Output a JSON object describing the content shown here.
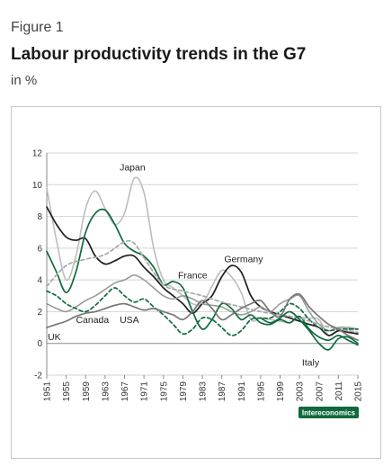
{
  "figure_label": "Figure 1",
  "title": "Labour productivity trends in the G7",
  "subtitle": "in %",
  "badge": "Intereconomics",
  "colors": {
    "Japan": "#bdbdbd",
    "Germany": "#1e1e1e",
    "France": "#9a9a9a",
    "Canada": "#0f6b3c",
    "USA": "#0f6b3c",
    "UK": "#777777",
    "Italy": "#0f6b3c",
    "badge": "#0f6b3c"
  },
  "chart_data": {
    "type": "line",
    "ylim": [
      -2,
      12
    ],
    "yticks": [
      -2,
      0,
      2,
      4,
      6,
      8,
      10,
      12
    ],
    "xlim": [
      1951,
      2015
    ],
    "xticks": [
      1951,
      1955,
      1959,
      1963,
      1967,
      1971,
      1975,
      1979,
      1983,
      1987,
      1991,
      1995,
      1999,
      2003,
      2007,
      2011,
      2015
    ],
    "grid": "horizontal",
    "series": [
      {
        "name": "Japan",
        "style": "solid",
        "x": [
          1951,
          1953,
          1955,
          1957,
          1959,
          1961,
          1963,
          1965,
          1967,
          1969,
          1971,
          1973,
          1975,
          1977,
          1979,
          1981,
          1983,
          1985,
          1987,
          1989,
          1991,
          1993,
          1995,
          1997,
          1999,
          2001,
          2003,
          2005,
          2007,
          2009,
          2011,
          2013,
          2015
        ],
        "y": [
          9.8,
          6.5,
          4.0,
          5.5,
          8.5,
          9.6,
          8.5,
          7.5,
          8.2,
          10.4,
          9.5,
          6.0,
          4.0,
          3.5,
          3.0,
          2.5,
          2.5,
          3.6,
          4.6,
          4.2,
          3.2,
          1.5,
          1.6,
          1.5,
          1.4,
          1.3,
          1.6,
          1.6,
          1.5,
          0.5,
          0.8,
          0.9,
          0.9
        ]
      },
      {
        "name": "Germany",
        "style": "solid",
        "x": [
          1951,
          1953,
          1955,
          1957,
          1959,
          1961,
          1963,
          1965,
          1967,
          1969,
          1971,
          1973,
          1975,
          1977,
          1979,
          1981,
          1983,
          1985,
          1987,
          1989,
          1991,
          1993,
          1995,
          1997,
          1999,
          2001,
          2003,
          2005,
          2007,
          2009,
          2011,
          2013,
          2015
        ],
        "y": [
          8.6,
          7.5,
          6.7,
          6.5,
          6.6,
          5.5,
          5.0,
          5.2,
          5.5,
          5.5,
          4.8,
          4.2,
          3.5,
          3.0,
          2.5,
          1.9,
          2.5,
          3.0,
          4.2,
          4.9,
          4.5,
          3.0,
          2.3,
          2.0,
          1.8,
          1.6,
          1.4,
          1.2,
          1.0,
          0.5,
          0.8,
          0.7,
          0.6
        ]
      },
      {
        "name": "France",
        "style": "solid",
        "x": [
          1951,
          1953,
          1955,
          1957,
          1959,
          1961,
          1963,
          1965,
          1967,
          1969,
          1971,
          1973,
          1975,
          1977,
          1979,
          1981,
          1983,
          1985,
          1987,
          1989,
          1991,
          1993,
          1995,
          1997,
          1999,
          2001,
          2003,
          2005,
          2007,
          2009,
          2011,
          2013,
          2015
        ],
        "y": [
          2.5,
          2.2,
          2.0,
          2.3,
          2.7,
          3.0,
          3.4,
          3.8,
          4.0,
          4.3,
          4.0,
          3.5,
          3.0,
          2.8,
          3.0,
          2.8,
          2.5,
          2.4,
          2.3,
          2.0,
          1.8,
          2.0,
          2.3,
          2.0,
          2.5,
          2.8,
          3.0,
          2.0,
          1.2,
          0.8,
          1.0,
          1.0,
          0.9
        ]
      },
      {
        "name": "Canada",
        "style": "solid",
        "x": [
          1951,
          1953,
          1955,
          1957,
          1959,
          1961,
          1963,
          1965,
          1967,
          1969,
          1971,
          1973,
          1975,
          1977,
          1979,
          1981,
          1983,
          1985,
          1987,
          1989,
          1991,
          1993,
          1995,
          1997,
          1999,
          2001,
          2003,
          2005,
          2007,
          2009,
          2011,
          2013,
          2015
        ],
        "y": [
          5.8,
          4.5,
          3.2,
          4.5,
          7.0,
          8.2,
          8.4,
          7.5,
          6.3,
          5.8,
          5.5,
          4.8,
          3.7,
          3.9,
          3.5,
          2.0,
          0.9,
          1.5,
          2.5,
          2.2,
          1.5,
          1.8,
          1.3,
          1.2,
          1.5,
          1.3,
          1.7,
          0.9,
          0.4,
          0.2,
          0.5,
          0.2,
          -0.1
        ]
      },
      {
        "name": "USA",
        "style": "dashed",
        "x": [
          1951,
          1953,
          1955,
          1957,
          1959,
          1961,
          1963,
          1965,
          1967,
          1969,
          1971,
          1973,
          1975,
          1977,
          1979,
          1981,
          1983,
          1985,
          1987,
          1989,
          1991,
          1993,
          1995,
          1997,
          1999,
          2001,
          2003,
          2005,
          2007,
          2009,
          2011,
          2013,
          2015
        ],
        "y": [
          3.3,
          3.0,
          2.5,
          2.2,
          2.0,
          2.4,
          3.0,
          3.5,
          3.0,
          2.6,
          2.8,
          2.3,
          1.8,
          1.2,
          0.6,
          0.9,
          1.6,
          1.5,
          1.0,
          0.5,
          0.8,
          1.5,
          1.6,
          1.6,
          2.0,
          2.5,
          2.2,
          1.5,
          1.0,
          0.8,
          0.9,
          0.9,
          0.9
        ]
      },
      {
        "name": "",
        "style": "dashed",
        "x": [
          1951,
          1955,
          1959,
          1963,
          1967,
          1969,
          1971,
          1975,
          1979,
          1983,
          1987,
          1991,
          1995,
          1999,
          2003,
          2007,
          2011,
          2015
        ],
        "y": [
          3.6,
          4.9,
          5.3,
          5.6,
          6.4,
          6.3,
          5.4,
          3.7,
          3.3,
          3.0,
          2.6,
          2.3,
          2.0,
          1.8,
          1.6,
          1.2,
          0.9,
          0.7
        ]
      },
      {
        "name": "UK",
        "style": "solid",
        "x": [
          1951,
          1953,
          1955,
          1957,
          1959,
          1961,
          1963,
          1965,
          1967,
          1969,
          1971,
          1973,
          1975,
          1977,
          1979,
          1981,
          1983,
          1985,
          1987,
          1989,
          1991,
          1993,
          1995,
          1997,
          1999,
          2001,
          2003,
          2005,
          2007,
          2009,
          2011,
          2013,
          2015
        ],
        "y": [
          1.0,
          1.2,
          1.4,
          1.7,
          1.9,
          2.0,
          2.2,
          2.4,
          2.5,
          2.3,
          2.1,
          2.2,
          2.0,
          1.8,
          1.5,
          2.0,
          2.7,
          2.2,
          1.5,
          1.8,
          2.2,
          2.5,
          2.7,
          2.0,
          1.7,
          2.8,
          3.1,
          2.3,
          1.7,
          1.2,
          0.9,
          0.5,
          0.2
        ]
      },
      {
        "name": "Italy",
        "style": "solid",
        "x": [
          1995,
          1997,
          1999,
          2001,
          2003,
          2005,
          2007,
          2009,
          2011,
          2013,
          2015
        ],
        "y": [
          1.6,
          1.3,
          1.6,
          2.0,
          1.5,
          0.8,
          0.0,
          -0.4,
          0.3,
          0.4,
          0.0
        ]
      }
    ],
    "labels": [
      {
        "series": "Japan",
        "text": "Japan",
        "x": 1966,
        "y": 10.9
      },
      {
        "series": "Germany",
        "text": "Germany",
        "x": 1987.5,
        "y": 5.1
      },
      {
        "series": "France",
        "text": "France",
        "x": 1978,
        "y": 4.1
      },
      {
        "series": "Canada",
        "text": "Canada",
        "x": 1957,
        "y": 1.3
      },
      {
        "series": "USA",
        "text": "USA",
        "x": 1966,
        "y": 1.3
      },
      {
        "series": "UK",
        "text": "UK",
        "x": 1951.2,
        "y": 0.2
      },
      {
        "series": "Italy",
        "text": "Italy",
        "x": 2003.5,
        "y": -1.4
      }
    ]
  }
}
